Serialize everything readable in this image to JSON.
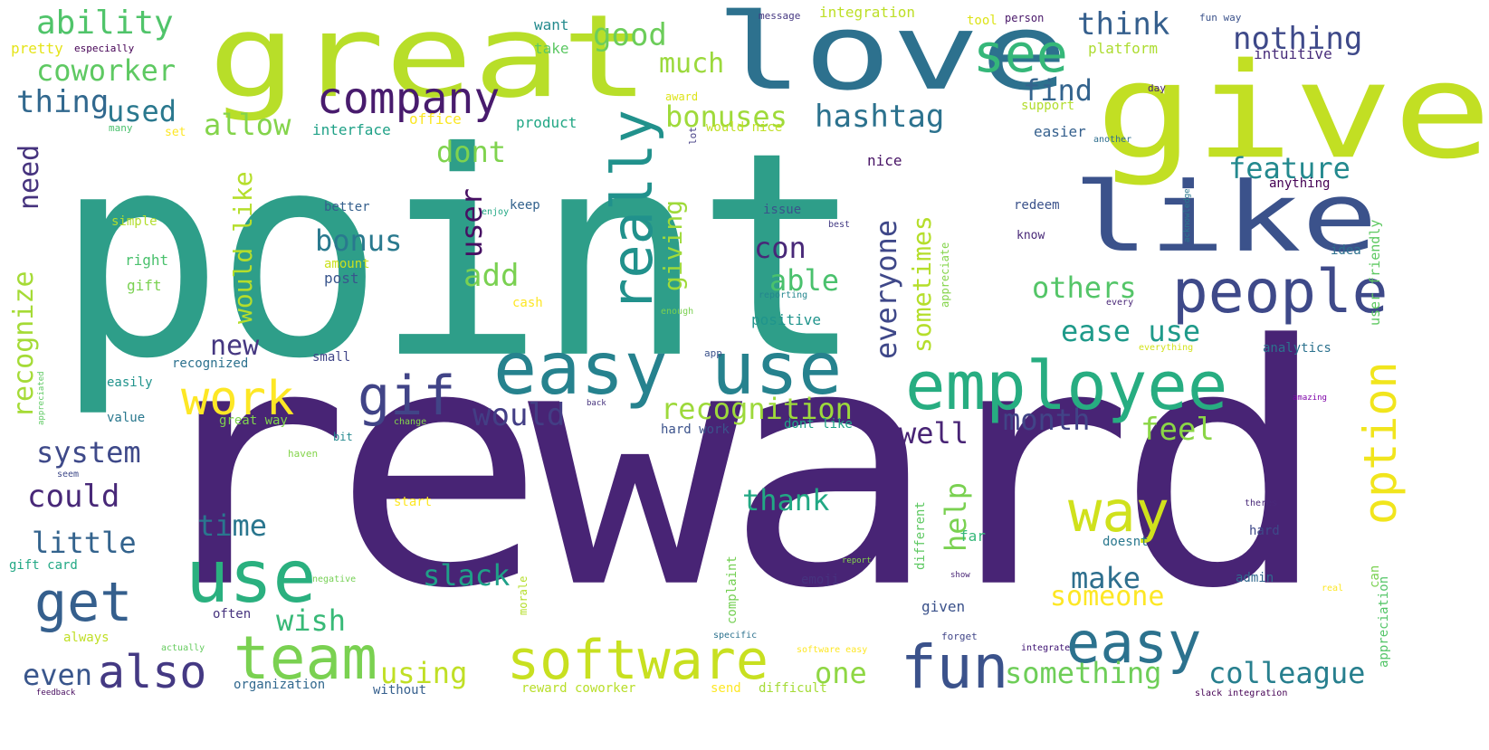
{
  "words": [
    {
      "text": "point",
      "color": "#2e9e89"
    },
    {
      "text": "reward",
      "color": "#482475"
    },
    {
      "text": "great",
      "color": "#b8de29"
    },
    {
      "text": "love",
      "color": "#2d718e"
    },
    {
      "text": "give",
      "color": "#c2df23"
    },
    {
      "text": "like",
      "color": "#3b528b"
    },
    {
      "text": "people",
      "color": "#3e4989"
    },
    {
      "text": "easy use",
      "color": "#26828e"
    },
    {
      "text": "employee",
      "color": "#27ad81"
    },
    {
      "text": "company",
      "color": "#481b6d"
    },
    {
      "text": "really",
      "color": "#21918c"
    },
    {
      "text": "use",
      "color": "#2ab07f"
    },
    {
      "text": "team",
      "color": "#7ad151"
    },
    {
      "text": "software",
      "color": "#c8e020"
    },
    {
      "text": "work",
      "color": "#fde725"
    },
    {
      "text": "gif",
      "color": "#414487"
    },
    {
      "text": "get",
      "color": "#355f8d"
    },
    {
      "text": "also",
      "color": "#443983"
    },
    {
      "text": "fun",
      "color": "#3b528b"
    },
    {
      "text": "easy",
      "color": "#2c728e"
    },
    {
      "text": "way",
      "color": "#d0e11c"
    },
    {
      "text": "option",
      "color": "#f1e51d"
    },
    {
      "text": "see",
      "color": "#35b779"
    },
    {
      "text": "ability",
      "color": "#50c46a"
    },
    {
      "text": "coworker",
      "color": "#5ec962"
    },
    {
      "text": "thing",
      "color": "#31688e"
    },
    {
      "text": "used",
      "color": "#2a788e"
    },
    {
      "text": "allow",
      "color": "#84d44b"
    },
    {
      "text": "good",
      "color": "#6ccd5a"
    },
    {
      "text": "much",
      "color": "#9bd93c"
    },
    {
      "text": "think",
      "color": "#355f8d"
    },
    {
      "text": "nothing",
      "color": "#3e4989"
    },
    {
      "text": "find",
      "color": "#33638d"
    },
    {
      "text": "hashtag",
      "color": "#2c728e"
    },
    {
      "text": "bonuses",
      "color": "#9fda3a"
    },
    {
      "text": "feature",
      "color": "#23898e"
    },
    {
      "text": "dont",
      "color": "#7fd34e"
    },
    {
      "text": "need",
      "color": "#46337e"
    },
    {
      "text": "recognize",
      "color": "#a5db36"
    },
    {
      "text": "would like",
      "color": "#b5de2b"
    },
    {
      "text": "user",
      "color": "#471063"
    },
    {
      "text": "bonus",
      "color": "#29798e"
    },
    {
      "text": "giving",
      "color": "#9fda3a"
    },
    {
      "text": "everyone",
      "color": "#3f4889"
    },
    {
      "text": "sometimes",
      "color": "#b5de2b"
    },
    {
      "text": "add",
      "color": "#7ad151"
    },
    {
      "text": "con",
      "color": "#482878"
    },
    {
      "text": "able",
      "color": "#4ac16d"
    },
    {
      "text": "others",
      "color": "#54c568"
    },
    {
      "text": "ease use",
      "color": "#1f9a8a"
    },
    {
      "text": "new",
      "color": "#453781"
    },
    {
      "text": "recognition",
      "color": "#9dd93b"
    },
    {
      "text": "would",
      "color": "#433e85"
    },
    {
      "text": "month",
      "color": "#414487"
    },
    {
      "text": "well",
      "color": "#482475"
    },
    {
      "text": "feel",
      "color": "#8bd646"
    },
    {
      "text": "system",
      "color": "#3e4989"
    },
    {
      "text": "could",
      "color": "#482878"
    },
    {
      "text": "little",
      "color": "#33638d"
    },
    {
      "text": "time",
      "color": "#2a768e"
    },
    {
      "text": "thank",
      "color": "#22a884"
    },
    {
      "text": "help",
      "color": "#7ad151"
    },
    {
      "text": "slack",
      "color": "#1fa088"
    },
    {
      "text": "make",
      "color": "#2e6f8e"
    },
    {
      "text": "someone",
      "color": "#fde725"
    },
    {
      "text": "wish",
      "color": "#38b977"
    },
    {
      "text": "even",
      "color": "#39568c"
    },
    {
      "text": "using",
      "color": "#c0df25"
    },
    {
      "text": "one",
      "color": "#8fd744"
    },
    {
      "text": "something",
      "color": "#6ece58"
    },
    {
      "text": "colleague",
      "color": "#277f8e"
    },
    {
      "text": "integration",
      "color": "#bddf26"
    },
    {
      "text": "message",
      "color": "#453781"
    },
    {
      "text": "tool",
      "color": "#dde318"
    },
    {
      "text": "person",
      "color": "#481668"
    },
    {
      "text": "fun way",
      "color": "#3b528b"
    },
    {
      "text": "want",
      "color": "#238a8d"
    },
    {
      "text": "take",
      "color": "#5cc863"
    },
    {
      "text": "platform",
      "color": "#addc30"
    },
    {
      "text": "intuitive",
      "color": "#472c7a"
    },
    {
      "text": "pretty",
      "color": "#e5e419"
    },
    {
      "text": "especially",
      "color": "#440154"
    },
    {
      "text": "product",
      "color": "#22a785"
    },
    {
      "text": "office",
      "color": "#fbe723"
    },
    {
      "text": "interface",
      "color": "#1fa187"
    },
    {
      "text": "support",
      "color": "#b2dd2d"
    },
    {
      "text": "easier",
      "color": "#35608d"
    },
    {
      "text": "award",
      "color": "#dde318"
    },
    {
      "text": "would nice",
      "color": "#c0df25"
    },
    {
      "text": "another",
      "color": "#2e6e8e"
    },
    {
      "text": "day",
      "color": "#482173"
    },
    {
      "text": "set",
      "color": "#fde725"
    },
    {
      "text": "many",
      "color": "#4ac16d"
    },
    {
      "text": "lot",
      "color": "#433d84"
    },
    {
      "text": "nice",
      "color": "#471365"
    },
    {
      "text": "better",
      "color": "#355f8d"
    },
    {
      "text": "simple",
      "color": "#b2dd2d"
    },
    {
      "text": "right",
      "color": "#4ac16d"
    },
    {
      "text": "gift",
      "color": "#7ad151"
    },
    {
      "text": "amount",
      "color": "#cae11f"
    },
    {
      "text": "post",
      "color": "#39558c"
    },
    {
      "text": "keep",
      "color": "#33628d"
    },
    {
      "text": "issue",
      "color": "#3a538b"
    },
    {
      "text": "best",
      "color": "#443b84"
    },
    {
      "text": "redeem",
      "color": "#3b528b"
    },
    {
      "text": "know",
      "color": "#482878"
    },
    {
      "text": "anything",
      "color": "#440154"
    },
    {
      "text": "idea",
      "color": "#2d708e"
    },
    {
      "text": "user friendly",
      "color": "#5ec962"
    },
    {
      "text": "acknowledge",
      "color": "#2a788e"
    },
    {
      "text": "enjoy",
      "color": "#22a884"
    },
    {
      "text": "positive",
      "color": "#1f948c"
    },
    {
      "text": "every",
      "color": "#482677"
    },
    {
      "text": "reporting",
      "color": "#24868e"
    },
    {
      "text": "cash",
      "color": "#fde725"
    },
    {
      "text": "enough",
      "color": "#7ad151"
    },
    {
      "text": "appreciate",
      "color": "#84d44b"
    },
    {
      "text": "analytics",
      "color": "#2c728e"
    },
    {
      "text": "everything",
      "color": "#d2e21b"
    },
    {
      "text": "app",
      "color": "#3b528b"
    },
    {
      "text": "small",
      "color": "#404588"
    },
    {
      "text": "recognized",
      "color": "#2c718e"
    },
    {
      "text": "easily",
      "color": "#20938c"
    },
    {
      "text": "value",
      "color": "#2a788e"
    },
    {
      "text": "great way",
      "color": "#7fd34e"
    },
    {
      "text": "hard work",
      "color": "#3b528b"
    },
    {
      "text": "dont like",
      "color": "#20a386"
    },
    {
      "text": "bit",
      "color": "#23898e"
    },
    {
      "text": "change",
      "color": "#84d44b"
    },
    {
      "text": "back",
      "color": "#46337e"
    },
    {
      "text": "amazing",
      "color": "#7e03a8"
    },
    {
      "text": "appreciated",
      "color": "#5ec962"
    },
    {
      "text": "start",
      "color": "#fde725"
    },
    {
      "text": "complaint",
      "color": "#75d054"
    },
    {
      "text": "different",
      "color": "#5ec962"
    },
    {
      "text": "emoji",
      "color": "#46337e"
    },
    {
      "text": "given",
      "color": "#3b528b"
    },
    {
      "text": "far",
      "color": "#35b779"
    },
    {
      "text": "doesnt",
      "color": "#2a788e"
    },
    {
      "text": "hard",
      "color": "#3e4989"
    },
    {
      "text": "admin",
      "color": "#31688e"
    },
    {
      "text": "often",
      "color": "#46337e"
    },
    {
      "text": "gift card",
      "color": "#22a884"
    },
    {
      "text": "always",
      "color": "#c0df25"
    },
    {
      "text": "actually",
      "color": "#65cb5e"
    },
    {
      "text": "organization",
      "color": "#31688e"
    },
    {
      "text": "without",
      "color": "#355f8d"
    },
    {
      "text": "reward coworker",
      "color": "#b8de29"
    },
    {
      "text": "send",
      "color": "#fde725"
    },
    {
      "text": "difficult",
      "color": "#a5db36"
    },
    {
      "text": "feedback",
      "color": "#460b5e"
    },
    {
      "text": "slack integration",
      "color": "#440154"
    },
    {
      "text": "appreciation",
      "color": "#54c568"
    },
    {
      "text": "software easy",
      "color": "#fde725"
    },
    {
      "text": "specific",
      "color": "#2c728e"
    },
    {
      "text": "integrate",
      "color": "#3b0f70"
    },
    {
      "text": "forget",
      "color": "#404588"
    },
    {
      "text": "haven",
      "color": "#84d44b"
    },
    {
      "text": "morale",
      "color": "#b5de2b"
    },
    {
      "text": "real",
      "color": "#fde725"
    },
    {
      "text": "theres",
      "color": "#482878"
    },
    {
      "text": "report",
      "color": "#84d44b"
    },
    {
      "text": "seem",
      "color": "#3e4989"
    },
    {
      "text": "negative",
      "color": "#75d054"
    },
    {
      "text": "show",
      "color": "#482475"
    },
    {
      "text": "can",
      "color": "#7ad151"
    }
  ]
}
